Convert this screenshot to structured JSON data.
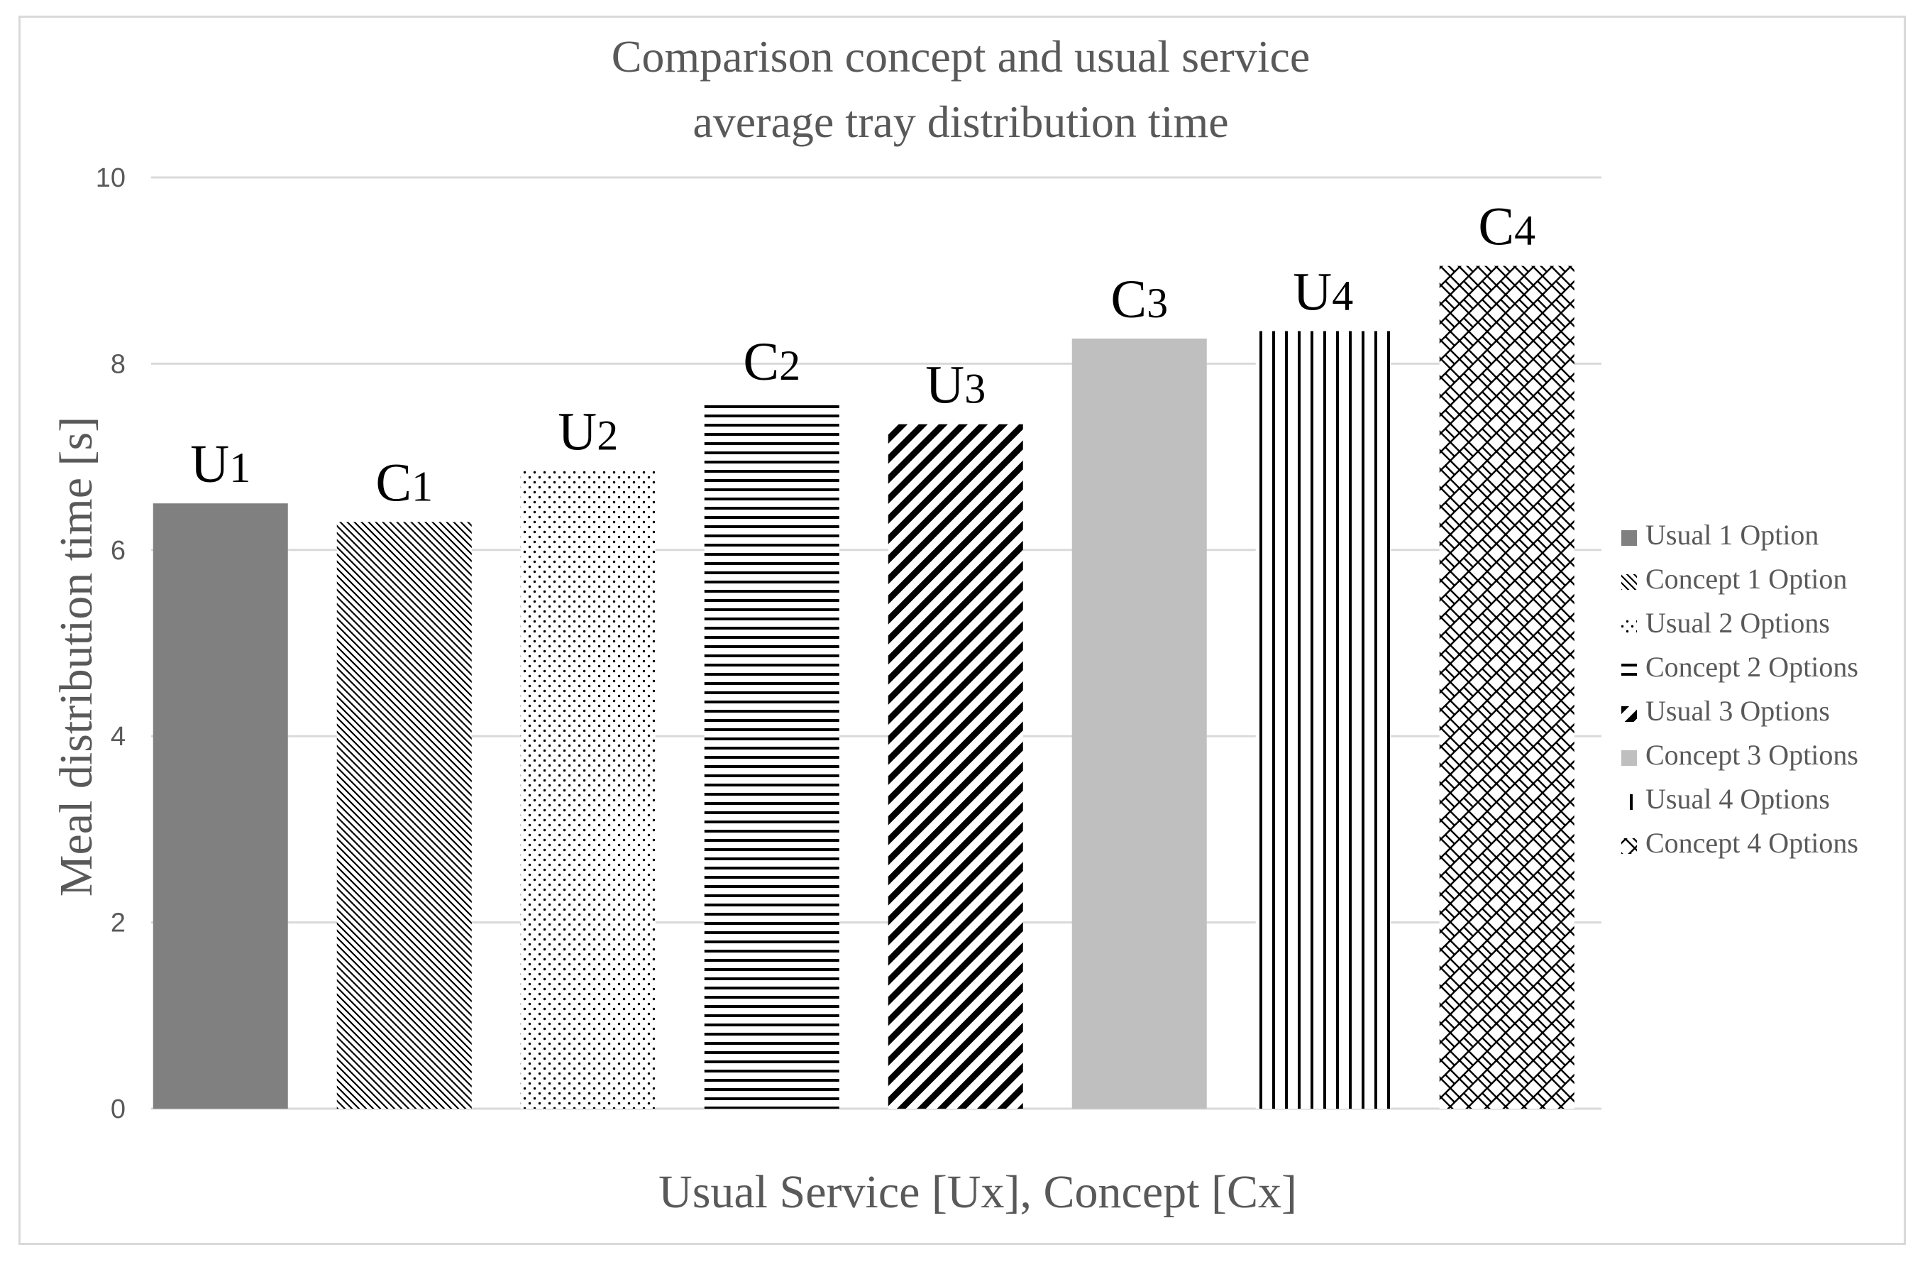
{
  "chart_data": {
    "type": "bar",
    "title": [
      "Comparison concept and usual service",
      "average tray distribution time"
    ],
    "xlabel": "Usual Service [Ux], Concept [Cx]",
    "ylabel": "Meal distribution time [s]",
    "ylim": [
      0,
      10
    ],
    "yticks": [
      "0",
      "2",
      "4",
      "6",
      "8",
      "10"
    ],
    "grid": true,
    "legend_position": "right",
    "bars": [
      {
        "name": "Usual 1 Option",
        "label": "U",
        "label_sub": "1",
        "value": 6.5,
        "pattern": "solid-dark",
        "color": "#808080"
      },
      {
        "name": "Concept 1 Option",
        "label": "C",
        "label_sub": "1",
        "value": 6.3,
        "pattern": "diag-fine",
        "color": "#000000"
      },
      {
        "name": "Usual 2 Options",
        "label": "U",
        "label_sub": "2",
        "value": 6.85,
        "pattern": "dots",
        "color": "#000000"
      },
      {
        "name": "Concept 2 Options",
        "label": "C",
        "label_sub": "2",
        "value": 7.6,
        "pattern": "horizontal",
        "color": "#000000"
      },
      {
        "name": "Usual 3 Options",
        "label": "U",
        "label_sub": "3",
        "value": 7.35,
        "pattern": "diag-wide",
        "color": "#000000"
      },
      {
        "name": "Concept 3 Options",
        "label": "C",
        "label_sub": "3",
        "value": 8.27,
        "pattern": "solid-light",
        "color": "#bfbfbf"
      },
      {
        "name": "Usual 4 Options",
        "label": "U",
        "label_sub": "4",
        "value": 8.35,
        "pattern": "vertical",
        "color": "#000000"
      },
      {
        "name": "Concept 4 Options",
        "label": "C",
        "label_sub": "4",
        "value": 9.05,
        "pattern": "lattice",
        "color": "#000000"
      }
    ]
  }
}
